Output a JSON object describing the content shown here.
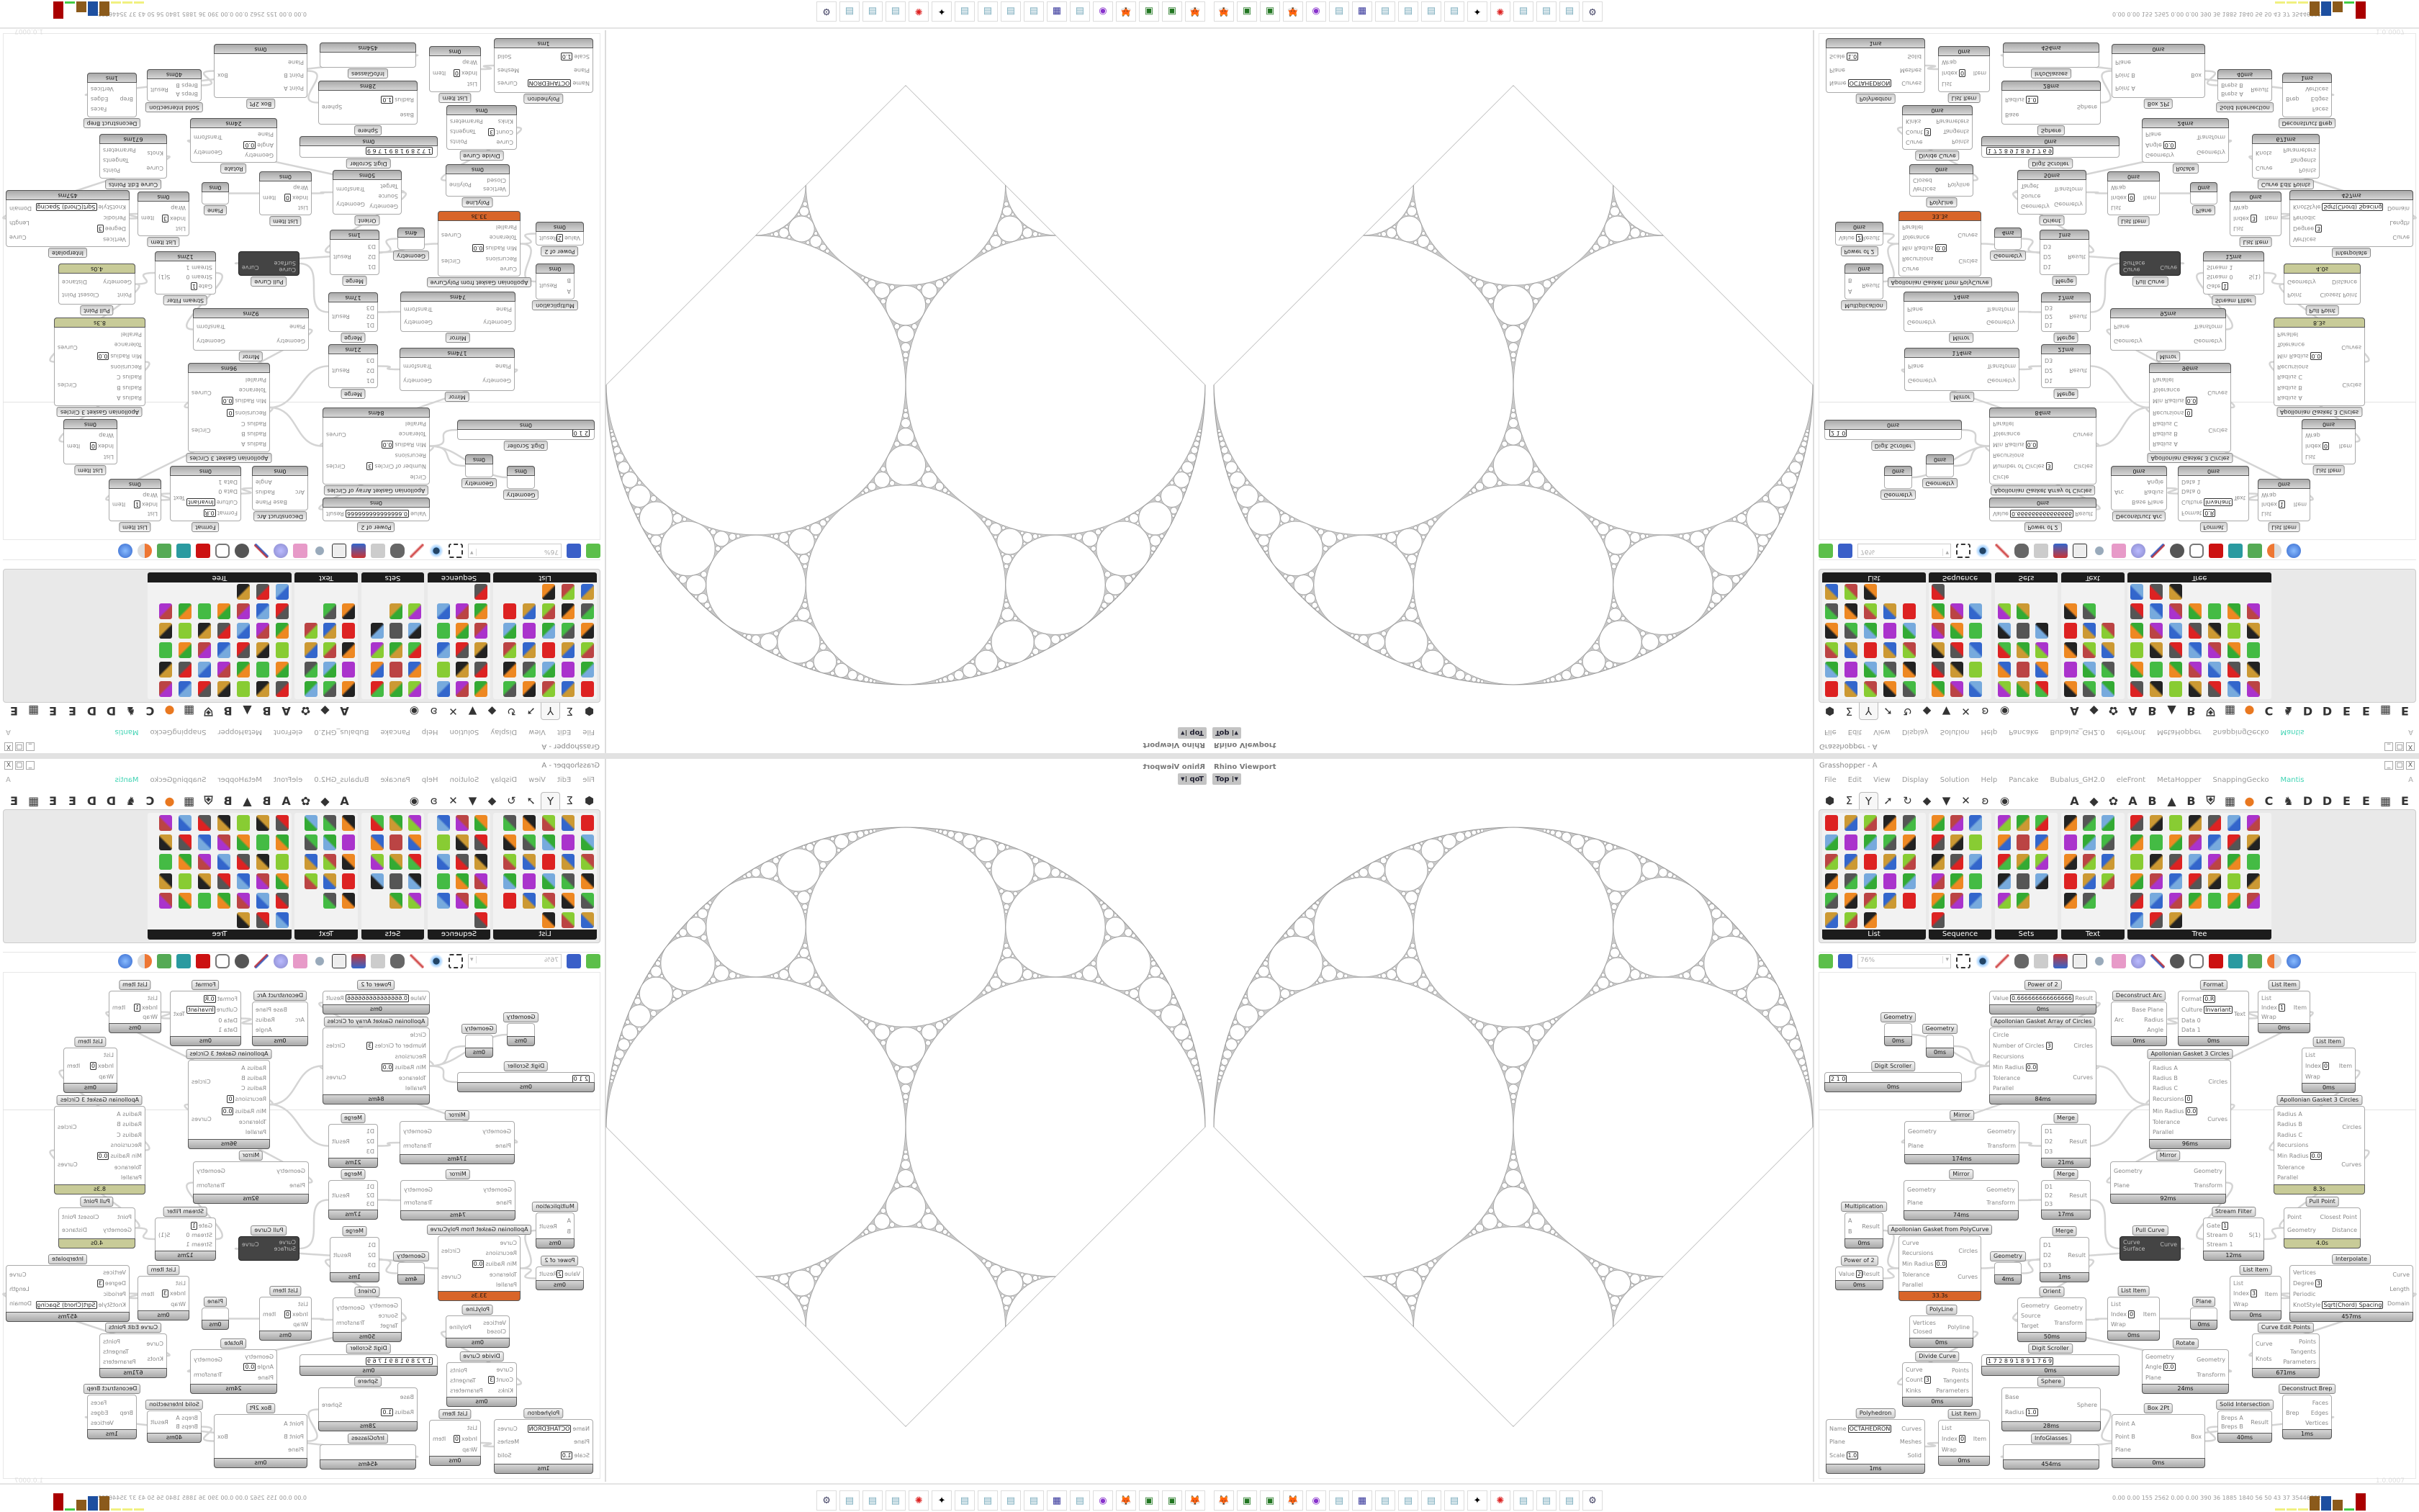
{
  "viewport": {
    "title": "Rhino Viewport",
    "view": "Top"
  },
  "grasshopper": {
    "title": "Grasshopper - A",
    "window_controls": [
      "_",
      "□",
      "X"
    ],
    "menu": [
      "File",
      "Edit",
      "View",
      "Display",
      "Solution",
      "Help",
      "Pancake",
      "Bubalus_GH2.0",
      "eleFront",
      "MetaHopper",
      "SnappingGecko",
      "Mantis"
    ],
    "menu_right": "A",
    "accent_color": "#3fd3b3",
    "tabs_left": [
      "⬢",
      "Σ",
      "Y",
      "➚",
      "↻",
      "◆",
      "▼",
      "✕",
      "ʚ",
      "◉"
    ],
    "tabs_right": [
      "A",
      "◆",
      "✿",
      "A",
      "B",
      "▲",
      "B",
      "⛨",
      "▦",
      "●",
      "C",
      "♞",
      "D",
      "D",
      "E",
      "E",
      "▦",
      "E"
    ],
    "selected_tab": 2,
    "panel": [
      {
        "label": "List",
        "icon_count": 28
      },
      {
        "label": "Sequence",
        "icon_count": 16
      },
      {
        "label": "Sets",
        "icon_count": 14
      },
      {
        "label": "Text",
        "icon_count": 14
      },
      {
        "label": "Tree",
        "icon_count": 38
      }
    ],
    "zoom": "76%",
    "version": "1.0.0007"
  },
  "nodes": [
    {
      "t": "Power of 2",
      "i": [
        {
          "l": "Value",
          "v": "0.666666666666666"
        }
      ],
      "o": [
        "Result"
      ],
      "ms": "0ms"
    },
    {
      "t": "Apollonian Gasket Array of Circles",
      "i": [
        {
          "l": "Circle"
        },
        {
          "l": "Number of Circles",
          "v": "3"
        },
        {
          "l": "Recursions"
        },
        {
          "l": "Min Radius",
          "v": "0.0"
        },
        {
          "l": "Tolerance"
        },
        {
          "l": "Parallel"
        }
      ],
      "o": [
        "Circles",
        "Curves"
      ],
      "ms": "84ms"
    },
    {
      "t": "Geometry",
      "i": [],
      "o": [],
      "ms": "0ms"
    },
    {
      "t": "Geometry",
      "i": [],
      "o": [],
      "ms": "0ms"
    },
    {
      "t": "Digit Scroller",
      "i": [
        {
          "l": "",
          "v": "2 1 0"
        }
      ],
      "o": [],
      "ms": "0ms"
    },
    {
      "t": "Deconstruct Arc",
      "i": [
        {
          "l": "Arc"
        }
      ],
      "o": [
        "Base Plane",
        "Radius",
        "Angle"
      ],
      "ms": "0ms"
    },
    {
      "t": "Format",
      "i": [
        {
          "l": "Format",
          "v": "0.R"
        },
        {
          "l": "Culture",
          "v": "Invariant"
        },
        {
          "l": "Data 0"
        },
        {
          "l": "Data 1"
        }
      ],
      "o": [
        "Text"
      ],
      "ms": "0ms"
    },
    {
      "t": "List Item",
      "i": [
        {
          "l": "List"
        },
        {
          "l": "Index",
          "v": "1"
        },
        {
          "l": "Wrap"
        }
      ],
      "o": [
        "Item"
      ],
      "ms": "0ms"
    },
    {
      "t": "List Item",
      "i": [
        {
          "l": "List"
        },
        {
          "l": "Index",
          "v": "0"
        },
        {
          "l": "Wrap"
        }
      ],
      "o": [
        "Item"
      ],
      "ms": "0ms"
    },
    {
      "t": "Apollonian Gasket 3 Circles",
      "i": [
        {
          "l": "Radius A"
        },
        {
          "l": "Radius B"
        },
        {
          "l": "Radius C"
        },
        {
          "l": "Recursions",
          "v": "0"
        },
        {
          "l": "Min Radius",
          "v": "0.0"
        },
        {
          "l": "Tolerance"
        },
        {
          "l": "Parallel"
        }
      ],
      "o": [
        "Circles",
        "Curves"
      ],
      "ms": "96ms"
    },
    {
      "t": "Apollonian Gasket 3 Circles",
      "i": [
        {
          "l": "Radius A"
        },
        {
          "l": "Radius B"
        },
        {
          "l": "Radius C"
        },
        {
          "l": "Recursions"
        },
        {
          "l": "Min Radius",
          "v": "0.0"
        },
        {
          "l": "Tolerance"
        },
        {
          "l": "Parallel"
        }
      ],
      "o": [
        "Circles",
        "Curves"
      ],
      "ms": "8.3s",
      "bar": "#c8cb98"
    },
    {
      "t": "Mirror",
      "i": [
        {
          "l": "Geometry"
        },
        {
          "l": "Plane"
        }
      ],
      "o": [
        "Geometry",
        "Transform"
      ],
      "ms": "174ms"
    },
    {
      "t": "Merge",
      "i": [
        {
          "l": "D1"
        },
        {
          "l": "D2"
        },
        {
          "l": "D3"
        }
      ],
      "o": [
        "Result"
      ],
      "ms": "21ms"
    },
    {
      "t": "Mirror",
      "i": [
        {
          "l": "Geometry"
        },
        {
          "l": "Plane"
        }
      ],
      "o": [
        "Geometry",
        "Transform"
      ],
      "ms": "74ms"
    },
    {
      "t": "Merge",
      "i": [
        {
          "l": "D1"
        },
        {
          "l": "D2"
        },
        {
          "l": "D3"
        }
      ],
      "o": [
        "Result"
      ],
      "ms": "17ms"
    },
    {
      "t": "Mirror",
      "i": [
        {
          "l": "Geometry"
        },
        {
          "l": "Plane"
        }
      ],
      "o": [
        "Geometry",
        "Transform"
      ],
      "ms": "92ms"
    },
    {
      "t": "Multiplication",
      "i": [
        {
          "l": "A"
        },
        {
          "l": "B"
        }
      ],
      "o": [
        "Result"
      ],
      "ms": "0ms"
    },
    {
      "t": "Apollonian Gasket from PolyCurve",
      "i": [
        {
          "l": "Curve"
        },
        {
          "l": "Recursions"
        },
        {
          "l": "Min Radius",
          "v": "0.0"
        },
        {
          "l": "Tolerance"
        },
        {
          "l": "Parallel"
        }
      ],
      "o": [
        "Circles",
        "Curves"
      ],
      "ms": "33.3s",
      "bar": "#d8652a"
    },
    {
      "t": "Stream Filter",
      "i": [
        {
          "l": "Gate",
          "v": "1"
        },
        {
          "l": "Stream 0"
        },
        {
          "l": "Stream 1"
        }
      ],
      "o": [
        "S(1)"
      ],
      "ms": "12ms"
    },
    {
      "t": "Pull Curve",
      "i": [
        {
          "l": "Curve"
        },
        {
          "l": "Surface"
        }
      ],
      "o": [
        "Curve"
      ],
      "ms": "",
      "dark": true
    },
    {
      "t": "Pull Point",
      "i": [
        {
          "l": "Point"
        },
        {
          "l": "Geometry"
        }
      ],
      "o": [
        "Closest Point",
        "Distance"
      ],
      "ms": "4.0s",
      "bar": "#c8cb98"
    },
    {
      "t": "Power of 2",
      "i": [
        {
          "l": "Value",
          "v": "2"
        }
      ],
      "o": [
        "Result"
      ],
      "ms": "0ms"
    },
    {
      "t": "Geometry",
      "i": [],
      "o": [],
      "ms": "4ms"
    },
    {
      "t": "Merge",
      "i": [
        {
          "l": "D1"
        },
        {
          "l": "D2"
        },
        {
          "l": "D3"
        }
      ],
      "o": [
        "Result"
      ],
      "ms": "1ms"
    },
    {
      "t": "Orient",
      "i": [
        {
          "l": "Geometry"
        },
        {
          "l": "Source"
        },
        {
          "l": "Target"
        }
      ],
      "o": [
        "Geometry",
        "Transform"
      ],
      "ms": "50ms"
    },
    {
      "t": "List Item",
      "i": [
        {
          "l": "List"
        },
        {
          "l": "Index",
          "v": "0"
        },
        {
          "l": "Wrap"
        }
      ],
      "o": [
        "Item"
      ],
      "ms": "0ms"
    },
    {
      "t": "Plane",
      "i": [],
      "o": [],
      "ms": "0ms"
    },
    {
      "t": "List Item",
      "i": [
        {
          "l": "List"
        },
        {
          "l": "Index",
          "v": "3"
        },
        {
          "l": "Wrap"
        }
      ],
      "o": [
        "Item"
      ],
      "ms": "0ms"
    },
    {
      "t": "Interpolate",
      "i": [
        {
          "l": "Vertices"
        },
        {
          "l": "Degree",
          "v": "3"
        },
        {
          "l": "Periodic"
        },
        {
          "l": "KnotStyle",
          "v": "Sqrt(Chord) Spacing"
        }
      ],
      "o": [
        "Curve",
        "Length",
        "Domain"
      ],
      "ms": "457ms"
    },
    {
      "t": "PolyLine",
      "i": [
        {
          "l": "Vertices"
        },
        {
          "l": "Closed"
        }
      ],
      "o": [
        "Polyline"
      ],
      "ms": "0ms"
    },
    {
      "t": "Digit Scroller",
      "i": [
        {
          "l": "",
          "v": "1 7 2 8 9 1 8 9 1 7 6 9"
        }
      ],
      "o": [],
      "ms": "0ms"
    },
    {
      "t": "Rotate",
      "i": [
        {
          "l": "Geometry"
        },
        {
          "l": "Angle",
          "v": "0.0"
        },
        {
          "l": "Plane"
        }
      ],
      "o": [
        "Geometry",
        "Transform"
      ],
      "ms": "24ms"
    },
    {
      "t": "Curve Edit Points",
      "i": [
        {
          "l": "Curve"
        },
        {
          "l": "Knots"
        }
      ],
      "o": [
        "Points",
        "Tangents",
        "Parameters"
      ],
      "ms": "671ms"
    },
    {
      "t": "Divide Curve",
      "i": [
        {
          "l": "Curve"
        },
        {
          "l": "Count",
          "v": "3"
        },
        {
          "l": "Kinks"
        }
      ],
      "o": [
        "Points",
        "Tangents",
        "Parameters"
      ],
      "ms": "0ms"
    },
    {
      "t": "Sphere",
      "i": [
        {
          "l": "Base"
        },
        {
          "l": "Radius",
          "v": "1.0"
        }
      ],
      "o": [
        "Sphere"
      ],
      "ms": "28ms"
    },
    {
      "t": "Deconstruct Brep",
      "i": [
        {
          "l": "Brep"
        }
      ],
      "o": [
        "Faces",
        "Edges",
        "Vertices"
      ],
      "ms": "1ms"
    },
    {
      "t": "Solid Intersection",
      "i": [
        {
          "l": "Breps A"
        },
        {
          "l": "Breps B"
        }
      ],
      "o": [
        "Result"
      ],
      "ms": "40ms"
    },
    {
      "t": "Box 2Pt",
      "i": [
        {
          "l": "Point A"
        },
        {
          "l": "Point B"
        },
        {
          "l": "Plane"
        }
      ],
      "o": [
        "Box"
      ],
      "ms": "0ms"
    },
    {
      "t": "InfoGlasses",
      "i": [],
      "o": [],
      "ms": "454ms"
    },
    {
      "t": "Polyhedron",
      "i": [
        {
          "l": "Name",
          "v": "OCTAHEDRON"
        },
        {
          "l": "Plane"
        },
        {
          "l": "Scale",
          "v": "1.0"
        }
      ],
      "o": [
        "Curves",
        "Meshes",
        "Solid"
      ],
      "ms": "1ms"
    },
    {
      "t": "List Item",
      "i": [
        {
          "l": "List"
        },
        {
          "l": "Index",
          "v": "0"
        },
        {
          "l": "Wrap"
        }
      ],
      "o": [
        "Item"
      ],
      "ms": "0ms"
    }
  ],
  "taskbar": {
    "icons": [
      "firefox",
      "terminal",
      "terminal",
      "firefox",
      "app-purple",
      "notepad",
      "floppy",
      "notepad",
      "notepad",
      "notepad",
      "notepad",
      "cat",
      "red-app",
      "notepad",
      "notepad",
      "notepad",
      "tool"
    ],
    "status": "0.00 0.00 155 2562 0.00 0.00 390 36 1885 1840 56 50 43 37 35446782",
    "status_bar_colors": [
      "#f0f080",
      "#f0f080",
      "#f0f080",
      "#8b5a1b",
      "#1d4fa0",
      "#8b5a1b",
      "#4c4",
      "#a00"
    ],
    "status_bar_levels": [
      0.1,
      0.1,
      0.1,
      0.7,
      0.7,
      0.55,
      0.1,
      0.85
    ]
  }
}
